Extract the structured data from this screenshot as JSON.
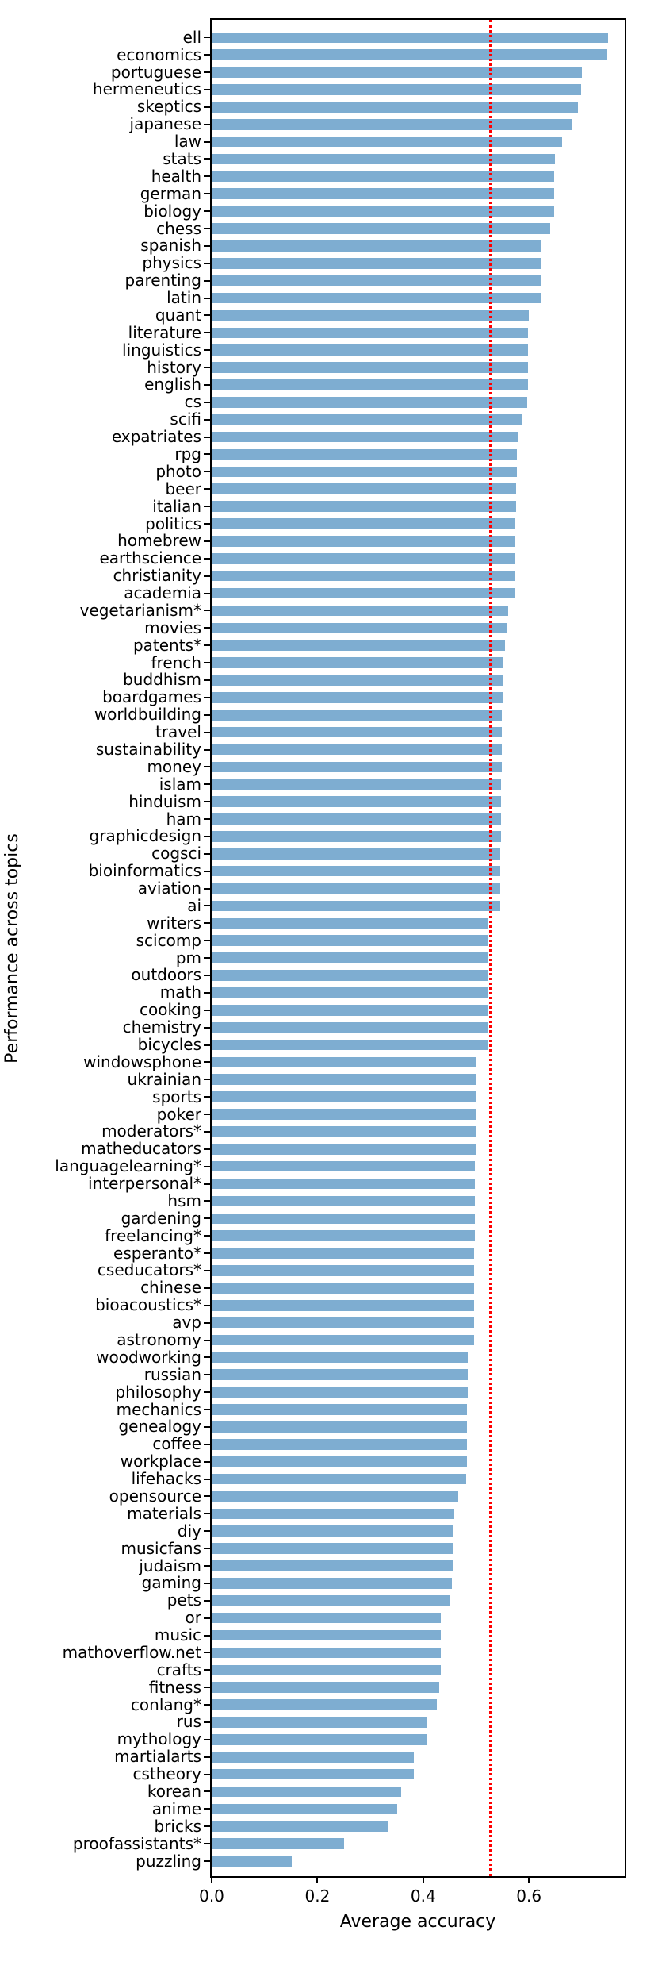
{
  "figure": {
    "background": "#ffffff"
  },
  "chart_data": {
    "type": "bar",
    "orientation": "horizontal",
    "title": "",
    "xlabel": "Average accuracy",
    "ylabel": "Performance across topics",
    "grid": false,
    "legend": null,
    "xlim": [
      0.0,
      0.785
    ],
    "xticks": [
      0.0,
      0.2,
      0.4,
      0.6
    ],
    "xtick_labels": [
      "0.0",
      "0.2",
      "0.4",
      "0.6"
    ],
    "bar_color": "#7EADD1",
    "axis_color": "#000000",
    "reference_line": {
      "value": 0.53,
      "color": "#ff0000",
      "style": "dotted"
    },
    "categories": [
      "ell",
      "economics",
      "portuguese",
      "hermeneutics",
      "skeptics",
      "japanese",
      "law",
      "stats",
      "health",
      "german",
      "biology",
      "chess",
      "spanish",
      "physics",
      "parenting",
      "latin",
      "quant",
      "literature",
      "linguistics",
      "history",
      "english",
      "cs",
      "scifi",
      "expatriates",
      "rpg",
      "photo",
      "beer",
      "italian",
      "politics",
      "homebrew",
      "earthscience",
      "christianity",
      "academia",
      "vegetarianism*",
      "movies",
      "patents*",
      "french",
      "buddhism",
      "boardgames",
      "worldbuilding",
      "travel",
      "sustainability",
      "money",
      "islam",
      "hinduism",
      "ham",
      "graphicdesign",
      "cogsci",
      "bioinformatics",
      "aviation",
      "ai",
      "writers",
      "scicomp",
      "pm",
      "outdoors",
      "math",
      "cooking",
      "chemistry",
      "bicycles",
      "windowsphone",
      "ukrainian",
      "sports",
      "poker",
      "moderators*",
      "matheducators",
      "languagelearning*",
      "interpersonal*",
      "hsm",
      "gardening",
      "freelancing*",
      "esperanto*",
      "cseducators*",
      "chinese",
      "bioacoustics*",
      "avp",
      "astronomy",
      "woodworking",
      "russian",
      "philosophy",
      "mechanics",
      "genealogy",
      "coffee",
      "workplace",
      "lifehacks",
      "opensource",
      "materials",
      "diy",
      "musicfans",
      "judaism",
      "gaming",
      "pets",
      "or",
      "music",
      "mathoverflow.net",
      "crafts",
      "fitness",
      "conlang*",
      "rus",
      "mythology",
      "martialarts",
      "cstheory",
      "korean",
      "anime",
      "bricks",
      "proofassistants*",
      "puzzling"
    ],
    "values": [
      0.75,
      0.748,
      0.7,
      0.698,
      0.692,
      0.682,
      0.663,
      0.649,
      0.648,
      0.648,
      0.647,
      0.64,
      0.624,
      0.623,
      0.623,
      0.622,
      0.599,
      0.598,
      0.598,
      0.598,
      0.598,
      0.597,
      0.587,
      0.58,
      0.577,
      0.577,
      0.576,
      0.575,
      0.574,
      0.573,
      0.573,
      0.573,
      0.572,
      0.56,
      0.557,
      0.554,
      0.551,
      0.551,
      0.55,
      0.549,
      0.549,
      0.548,
      0.548,
      0.547,
      0.547,
      0.547,
      0.547,
      0.546,
      0.546,
      0.546,
      0.545,
      0.523,
      0.523,
      0.523,
      0.523,
      0.522,
      0.522,
      0.522,
      0.522,
      0.501,
      0.5,
      0.5,
      0.5,
      0.499,
      0.499,
      0.498,
      0.498,
      0.498,
      0.498,
      0.498,
      0.497,
      0.497,
      0.497,
      0.497,
      0.496,
      0.496,
      0.484,
      0.484,
      0.484,
      0.483,
      0.483,
      0.483,
      0.483,
      0.482,
      0.466,
      0.459,
      0.458,
      0.456,
      0.456,
      0.455,
      0.452,
      0.434,
      0.434,
      0.433,
      0.433,
      0.43,
      0.426,
      0.408,
      0.407,
      0.383,
      0.382,
      0.358,
      0.351,
      0.334,
      0.25,
      0.151
    ]
  }
}
